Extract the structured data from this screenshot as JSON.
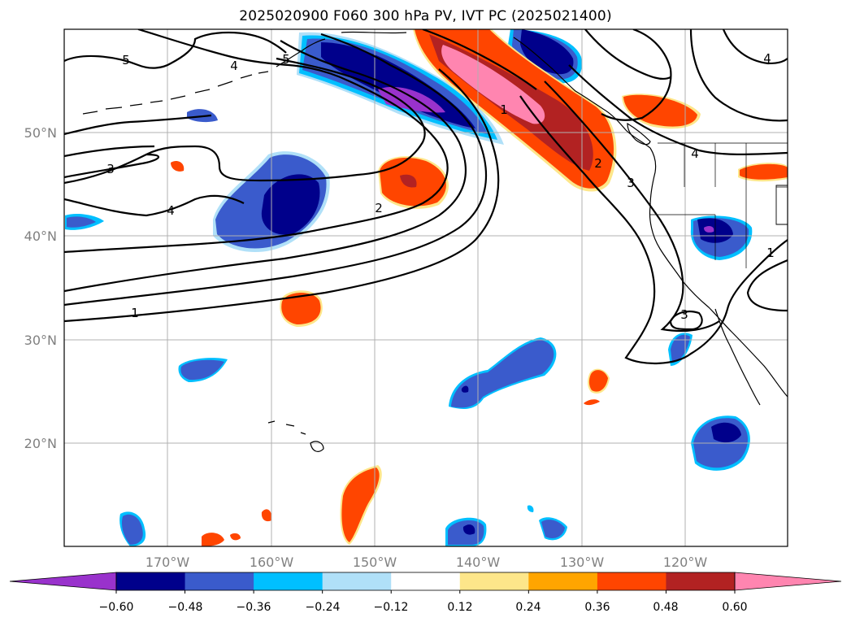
{
  "title": "2025020900 F060 300 hPa PV, IVT PC (2025021400)",
  "lat_labels": [
    "50°N",
    "40°N",
    "30°N",
    "20°N"
  ],
  "lon_labels": [
    "170°W",
    "160°W",
    "150°W",
    "140°W",
    "130°W",
    "120°W"
  ],
  "contour_labels": [
    "5",
    "4",
    "5",
    "3",
    "4",
    "1",
    "2",
    "1",
    "2",
    "3",
    "4",
    "4",
    "1",
    "3"
  ],
  "colorbar": {
    "tick_labels": [
      "−0.60",
      "−0.48",
      "−0.36",
      "−0.24",
      "−0.12",
      "0.12",
      "0.24",
      "0.36",
      "0.48",
      "0.60"
    ],
    "colors": [
      "#9932cc",
      "#00008b",
      "#3a5bcc",
      "#00bfff",
      "#b0e0f8",
      "#ffffff",
      "#fde68a",
      "#ffa500",
      "#ff4500",
      "#b22222",
      "#ff85b0"
    ]
  },
  "colors": {
    "neg_deep": "#00008b",
    "neg_mid": "#3a5bcc",
    "neg_light": "#00bfff",
    "neg_extreme": "#9932cc",
    "pos_orange": "#ff4500",
    "pos_red": "#b22222",
    "pos_pink": "#ff85b0",
    "pos_yellow": "#fde68a"
  }
}
